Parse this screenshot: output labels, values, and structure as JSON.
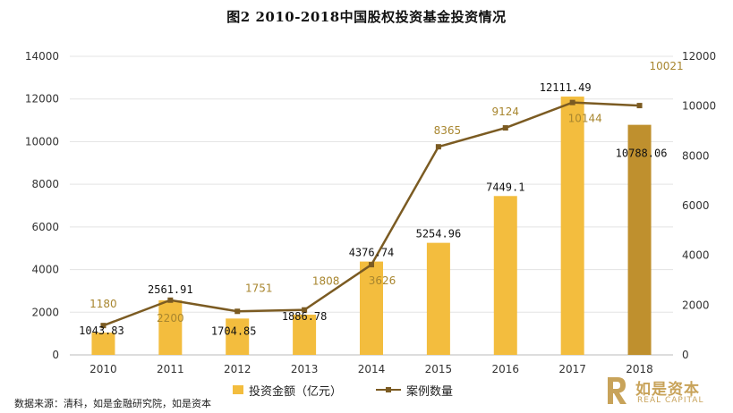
{
  "title": "图2  2010-2018中国股权投资基金投资情况",
  "chart_data": {
    "type": "bar",
    "categories": [
      "2010",
      "2011",
      "2012",
      "2013",
      "2014",
      "2015",
      "2016",
      "2017",
      "2018"
    ],
    "series": [
      {
        "name": "投资金额（亿元）",
        "type": "bar",
        "axis": "left",
        "values": [
          1043.83,
          2561.91,
          1704.85,
          1886.78,
          4376.74,
          5254.96,
          7449.1,
          12111.49,
          10788.06
        ],
        "labels": [
          "1043.83",
          "2561.91",
          "1704.85",
          "1886.78",
          "4376.74",
          "5254.96",
          "7449.1",
          "12111.49",
          "10788.06"
        ],
        "color": "#f3bd3e",
        "highlight_color": "#bf902e"
      },
      {
        "name": "案例数量",
        "type": "line",
        "axis": "right",
        "values": [
          1180,
          2200,
          1751,
          1808,
          3626,
          8365,
          9124,
          10144,
          10021
        ],
        "labels": [
          "1180",
          "2200",
          "1751",
          "1808",
          "3626",
          "8365",
          "9124",
          "10144",
          "10021"
        ],
        "color": "#7b5b22",
        "label_color": "#a8862f"
      }
    ],
    "y_left": {
      "ylim": [
        0,
        14000
      ],
      "ticks": [
        "0",
        "2000",
        "4000",
        "6000",
        "8000",
        "10000",
        "12000",
        "14000"
      ]
    },
    "y_right": {
      "ylim": [
        0,
        12000
      ],
      "ticks": [
        "0",
        "2000",
        "4000",
        "6000",
        "8000",
        "10000",
        "12000"
      ]
    },
    "grid": true,
    "legend": "bottom"
  },
  "source": "数据来源：清科，如是金融研究院，如是资本",
  "logo": {
    "cn": "如是资本",
    "en": "REAL CAPITAL"
  }
}
